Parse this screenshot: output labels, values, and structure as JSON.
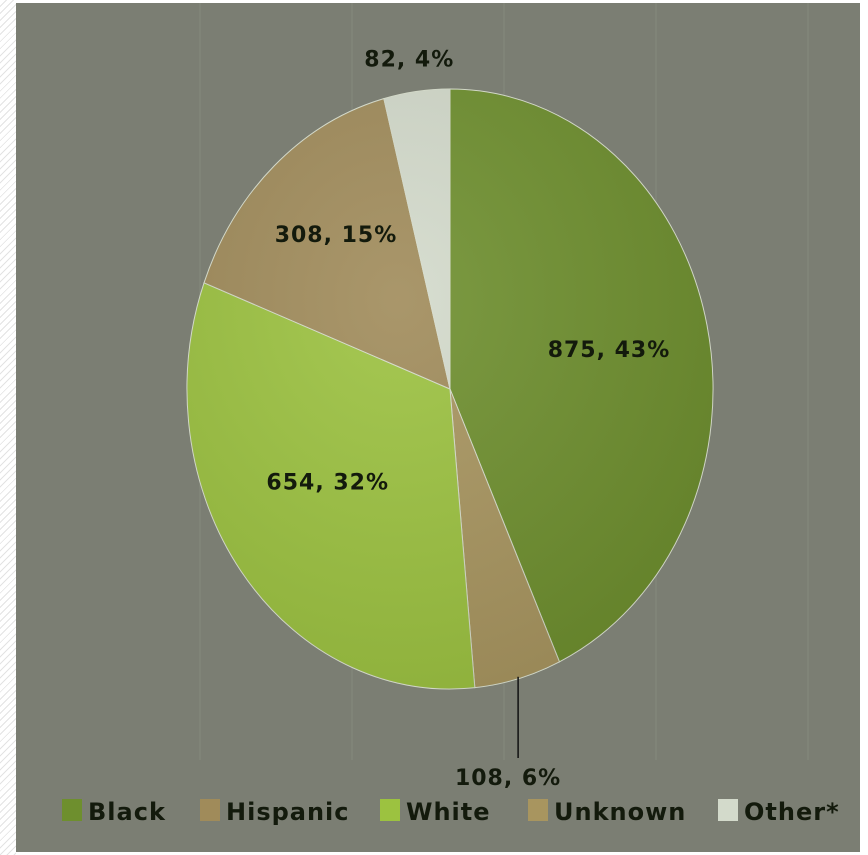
{
  "chart_data": {
    "type": "pie",
    "title": "",
    "legend_position": "bottom",
    "grid": true,
    "slices": [
      {
        "name": "Black",
        "value": 875,
        "percent_label": "875, 43%",
        "color": "#6e8f2e"
      },
      {
        "name": "Unknown",
        "value": 108,
        "percent_label": "108, 6%",
        "color": "#a8955f"
      },
      {
        "name": "White",
        "value": 654,
        "percent_label": "654, 32%",
        "color": "#9cc240"
      },
      {
        "name": "Hispanic",
        "value": 308,
        "percent_label": "308, 15%",
        "color": "#a08b5a"
      },
      {
        "name": "Other*",
        "value": 82,
        "percent_label": "82, 4%",
        "color": "#d3dacb"
      }
    ],
    "legend": [
      {
        "name": "Black",
        "color": "#6e8f2e"
      },
      {
        "name": "Hispanic",
        "color": "#a08b5a"
      },
      {
        "name": "White",
        "color": "#9cc240"
      },
      {
        "name": "Unknown",
        "color": "#a8955f"
      },
      {
        "name": "Other*",
        "color": "#d3dacb"
      }
    ]
  }
}
